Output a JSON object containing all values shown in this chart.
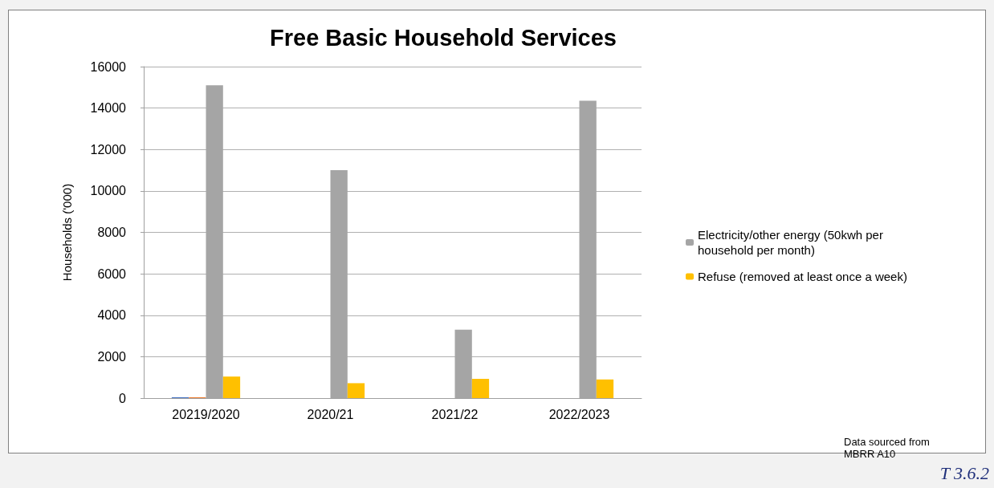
{
  "chart_data": {
    "type": "bar",
    "title": "Free Basic Household Services",
    "ylabel": "Households ('000)",
    "categories": [
      "20219/2020",
      "2020/21",
      "2021/22",
      "2022/2023"
    ],
    "series": [
      {
        "color": "#4472c4",
        "values": [
          40,
          null,
          null,
          null
        ]
      },
      {
        "color": "#ed7d31",
        "values": [
          40,
          null,
          null,
          null
        ]
      },
      {
        "name": "Electricity/other energy (50kwh per household per month)",
        "color": "#a5a5a5",
        "values": [
          15100,
          11000,
          3300,
          14350
        ]
      },
      {
        "name": "Refuse (removed at least once a week)",
        "color": "#ffc000",
        "values": [
          1040,
          720,
          930,
          900
        ]
      }
    ],
    "ylim": [
      0,
      16000
    ],
    "yticks": [
      0,
      2000,
      4000,
      6000,
      8000,
      10000,
      12000,
      14000,
      16000
    ],
    "grid": "y",
    "legend": "right",
    "annotations": [
      "Data sourced from MBRR A10",
      "T 3.6.2"
    ]
  }
}
